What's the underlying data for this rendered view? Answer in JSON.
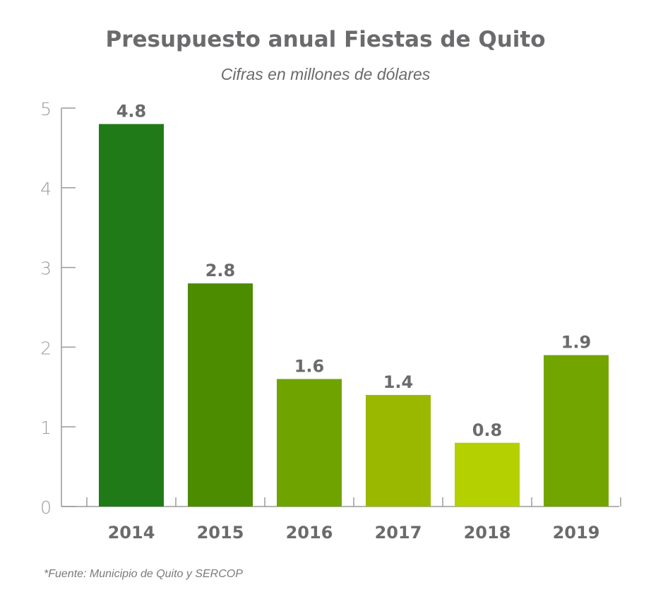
{
  "chart_data": {
    "type": "bar",
    "title": "Presupuesto anual Fiestas de Quito",
    "subtitle": "Cifras en millones de dólares",
    "categories": [
      "2014",
      "2015",
      "2016",
      "2017",
      "2018",
      "2019"
    ],
    "values": [
      4.8,
      2.8,
      1.6,
      1.4,
      0.8,
      1.9
    ],
    "value_labels": [
      "4.8",
      "2.8",
      "1.6",
      "1.4",
      "0.8",
      "1.9"
    ],
    "bar_colors": [
      "#217a18",
      "#4b8c00",
      "#6ea300",
      "#9ab800",
      "#b5d000",
      "#72a500"
    ],
    "ylim": [
      0,
      5
    ],
    "yticks": [
      0,
      1,
      2,
      3,
      4,
      5
    ],
    "xlabel": "",
    "ylabel": "",
    "grid": false,
    "legend": "none",
    "source": "*Fuente: Municipio de Quito y SERCOP"
  }
}
